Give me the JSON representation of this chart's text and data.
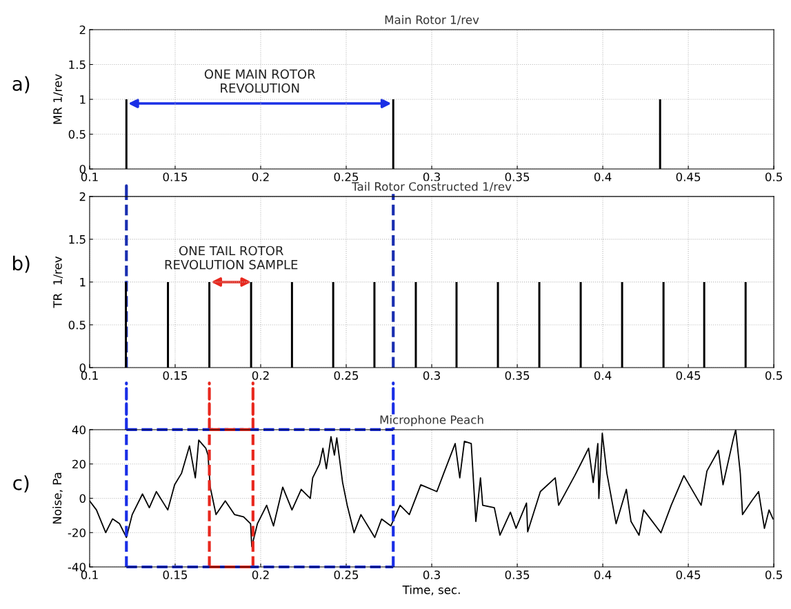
{
  "chart_data": [
    {
      "type": "bar",
      "title": "Main Rotor 1/rev",
      "ylabel": "MR 1/rev",
      "annotations": [
        "a)",
        "ONE MAIN ROTOR\nREVOLUTION"
      ],
      "x": [
        0.1215,
        0.2775,
        0.4335
      ],
      "series": [
        {
          "color": "#000000",
          "values": [
            1,
            1,
            1
          ]
        }
      ],
      "xlim": [
        0.1,
        0.5
      ],
      "xticks": [
        0.1,
        0.15,
        0.2,
        0.25,
        0.3,
        0.35,
        0.4,
        0.45,
        0.5
      ],
      "ylim": [
        0,
        2
      ],
      "yticks": [
        0,
        0.5,
        1,
        1.5,
        2
      ],
      "grid": true
    },
    {
      "type": "bar",
      "title": "Tail Rotor Constructed 1/rev",
      "ylabel": "TR  1/rev",
      "annotations": [
        "b)",
        "ONE TAIL ROTOR\nREVOLUTION SAMPLE"
      ],
      "x": [
        0.1212,
        0.1458,
        0.17,
        0.1944,
        0.2183,
        0.2424,
        0.2665,
        0.2907,
        0.3145,
        0.3387,
        0.3629,
        0.3871,
        0.4113,
        0.4355,
        0.4593,
        0.4835
      ],
      "series": [
        {
          "color": "#000000",
          "values": [
            1,
            1,
            1,
            1,
            1,
            1,
            1,
            1,
            1,
            1,
            1,
            1,
            1,
            1,
            1,
            1
          ]
        }
      ],
      "xlim": [
        0.1,
        0.5
      ],
      "xticks": [
        0.1,
        0.15,
        0.2,
        0.25,
        0.3,
        0.35,
        0.4,
        0.45,
        0.5
      ],
      "ylim": [
        0,
        2
      ],
      "yticks": [
        0,
        0.5,
        1,
        1.5,
        2
      ],
      "grid": true,
      "ref_lines": [
        {
          "axis": "x",
          "value": 0.1215,
          "color": "#1a2fb0",
          "line_style": "dashed"
        },
        {
          "axis": "x",
          "value": 0.2775,
          "color": "#1a2fb0",
          "line_style": "dashed"
        }
      ]
    },
    {
      "type": "line",
      "title": "Microphone Peach",
      "xlabel": "Time, sec.",
      "ylabel": "Noise, Pa",
      "annotations": [
        "c)"
      ],
      "x": [
        0.1,
        0.104,
        0.1094,
        0.1134,
        0.1175,
        0.1215,
        0.1249,
        0.1309,
        0.1349,
        0.139,
        0.1457,
        0.1497,
        0.1537,
        0.1584,
        0.1618,
        0.1638,
        0.1679,
        0.1692,
        0.1705,
        0.1739,
        0.1793,
        0.1847,
        0.19,
        0.1941,
        0.1948,
        0.1981,
        0.2035,
        0.2075,
        0.2129,
        0.2183,
        0.2237,
        0.229,
        0.2304,
        0.2344,
        0.2364,
        0.2384,
        0.2411,
        0.2431,
        0.2445,
        0.2479,
        0.2506,
        0.2546,
        0.2586,
        0.2667,
        0.2707,
        0.2761,
        0.2815,
        0.2869,
        0.2936,
        0.303,
        0.307,
        0.3137,
        0.3164,
        0.3191,
        0.3231,
        0.3258,
        0.3285,
        0.3298,
        0.3366,
        0.3399,
        0.346,
        0.3493,
        0.3554,
        0.3561,
        0.3635,
        0.3722,
        0.3742,
        0.3836,
        0.3877,
        0.3917,
        0.3944,
        0.3971,
        0.3977,
        0.3997,
        0.4024,
        0.4078,
        0.4138,
        0.4165,
        0.4212,
        0.4239,
        0.434,
        0.44,
        0.4474,
        0.4575,
        0.4609,
        0.4676,
        0.4703,
        0.4763,
        0.4777,
        0.4804,
        0.4817,
        0.4871,
        0.4911,
        0.4945,
        0.4972,
        0.4995
      ],
      "series": [
        {
          "color": "#000000",
          "values": [
            -1.5,
            -6.8,
            -20,
            -12,
            -14.8,
            -22.8,
            -9.5,
            2.5,
            -5.5,
            3.9,
            -6.8,
            7.9,
            14.5,
            30.5,
            11.9,
            33.9,
            29.2,
            25.2,
            6.5,
            -9.5,
            -1.5,
            -9.5,
            -10.8,
            -14.8,
            -28.1,
            -14.8,
            -4.1,
            -16.1,
            6.5,
            -6.8,
            5.2,
            -0.1,
            11.9,
            19.9,
            29.2,
            17.2,
            35.9,
            25.2,
            35.2,
            9.2,
            -4.1,
            -20.1,
            -9.5,
            -22.8,
            -12.1,
            -16.1,
            -4.1,
            -9.5,
            7.9,
            3.9,
            14.5,
            31.9,
            11.9,
            33.2,
            31.9,
            -13.5,
            11.9,
            -4.1,
            -5.5,
            -21.5,
            -8.1,
            -17.5,
            -2.8,
            -19.5,
            3.9,
            11.9,
            -4.1,
            13.2,
            21.2,
            29.2,
            9.2,
            31.9,
            -0.1,
            37.9,
            14.5,
            -14.8,
            5.2,
            -13.5,
            -21.5,
            -6.8,
            -20.1,
            -4.1,
            13.2,
            -4.1,
            15.9,
            27.9,
            7.9,
            34.5,
            39.9,
            14.5,
            -9.5,
            -1.5,
            3.9,
            -17.5,
            -6.8,
            -12
          ]
        }
      ],
      "xlim": [
        0.1,
        0.5
      ],
      "xticks": [
        0.1,
        0.15,
        0.2,
        0.25,
        0.3,
        0.35,
        0.4,
        0.45,
        0.5
      ],
      "ylim": [
        -40,
        40
      ],
      "yticks": [
        -40,
        -20,
        0,
        20,
        40
      ],
      "grid": true,
      "ref_lines": [
        {
          "axis": "x",
          "value": 0.1215,
          "color": "#1a2fe6",
          "line_style": "dashed"
        },
        {
          "axis": "x",
          "value": 0.2775,
          "color": "#1a2fe6",
          "line_style": "dashed"
        },
        {
          "axis": "x",
          "value": 0.17,
          "color": "#e8281e",
          "line_style": "dashed"
        },
        {
          "axis": "x",
          "value": 0.1955,
          "color": "#e8281e",
          "line_style": "dashed"
        }
      ]
    }
  ]
}
